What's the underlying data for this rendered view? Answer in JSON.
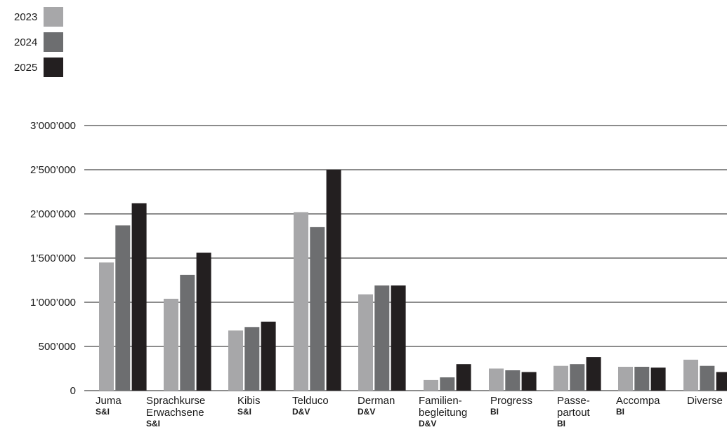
{
  "colors": {
    "2023": "#a7a7a9",
    "2024": "#6d6e70",
    "2025": "#231f20",
    "grid": "#1a1a1a"
  },
  "legend": [
    {
      "label": "2023",
      "color": "#a7a7a9"
    },
    {
      "label": "2024",
      "color": "#6d6e70"
    },
    {
      "label": "2025",
      "color": "#231f20"
    }
  ],
  "chart_data": {
    "type": "bar",
    "categories": [
      "Juma",
      "Sprachkurse Erwachsene",
      "Kibis",
      "Telduco",
      "Derman",
      "Familienbegleitung",
      "Progress",
      "Passepartout",
      "Accompa",
      "Diverse"
    ],
    "category_labels": [
      {
        "lines": [
          "Juma"
        ],
        "tag": "S&I"
      },
      {
        "lines": [
          "Sprachkurse",
          "Erwachsene"
        ],
        "tag": "S&I"
      },
      {
        "lines": [
          "Kibis"
        ],
        "tag": "S&I"
      },
      {
        "lines": [
          "Telduco"
        ],
        "tag": "D&V"
      },
      {
        "lines": [
          "Derman"
        ],
        "tag": "D&V"
      },
      {
        "lines": [
          "Familien-",
          "begleitung"
        ],
        "tag": "D&V"
      },
      {
        "lines": [
          "Progress"
        ],
        "tag": "BI"
      },
      {
        "lines": [
          "Passe-",
          "partout"
        ],
        "tag": "BI"
      },
      {
        "lines": [
          "Accompa"
        ],
        "tag": "BI"
      },
      {
        "lines": [
          "Diverse"
        ],
        "tag": ""
      }
    ],
    "series": [
      {
        "name": "2023",
        "values": [
          1450000,
          1040000,
          680000,
          2020000,
          1090000,
          120000,
          250000,
          280000,
          270000,
          350000
        ]
      },
      {
        "name": "2024",
        "values": [
          1870000,
          1310000,
          720000,
          1850000,
          1190000,
          150000,
          230000,
          300000,
          270000,
          280000
        ]
      },
      {
        "name": "2025",
        "values": [
          2120000,
          1560000,
          780000,
          2500000,
          1190000,
          300000,
          210000,
          380000,
          260000,
          210000
        ]
      }
    ],
    "ylim": [
      0,
      3000000
    ],
    "yticks": [
      0,
      500000,
      1000000,
      1500000,
      2000000,
      2500000,
      3000000
    ],
    "ytick_labels": [
      "0",
      "500’000",
      "1’000’000",
      "1’500’000",
      "2’000’000",
      "2’500’000",
      "3’000’000"
    ],
    "grid": true,
    "legend_position": "top-left",
    "title": "",
    "xlabel": "",
    "ylabel": ""
  }
}
